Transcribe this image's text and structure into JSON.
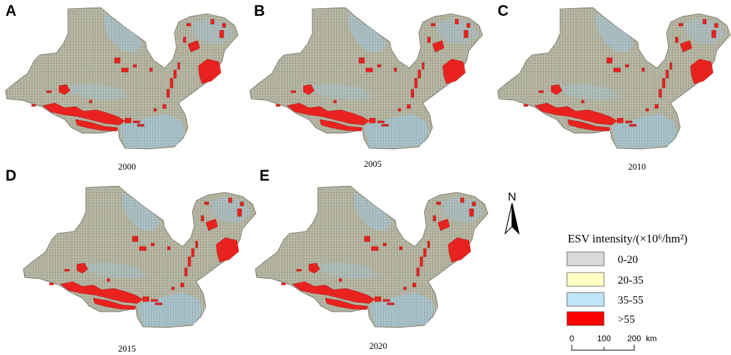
{
  "panels": [
    {
      "letter": "A",
      "year": "2000"
    },
    {
      "letter": "B",
      "year": "2005"
    },
    {
      "letter": "C",
      "year": "2010"
    },
    {
      "letter": "D",
      "year": "2015"
    },
    {
      "letter": "E",
      "year": "2020"
    }
  ],
  "legend": {
    "title": "ESV intensity/(×10⁶/hm²)",
    "classes": [
      {
        "label": "0-20",
        "color": "#d9d9d9"
      },
      {
        "label": "20-35",
        "color": "#ffffc4"
      },
      {
        "label": "35-55",
        "color": "#bfe6f7"
      },
      {
        "label": ">55",
        "color": "#ff0000"
      }
    ]
  },
  "north_arrow": {
    "label": "N"
  },
  "scale_bar": {
    "ticks": [
      "0",
      "100",
      "200"
    ],
    "unit": "km"
  }
}
